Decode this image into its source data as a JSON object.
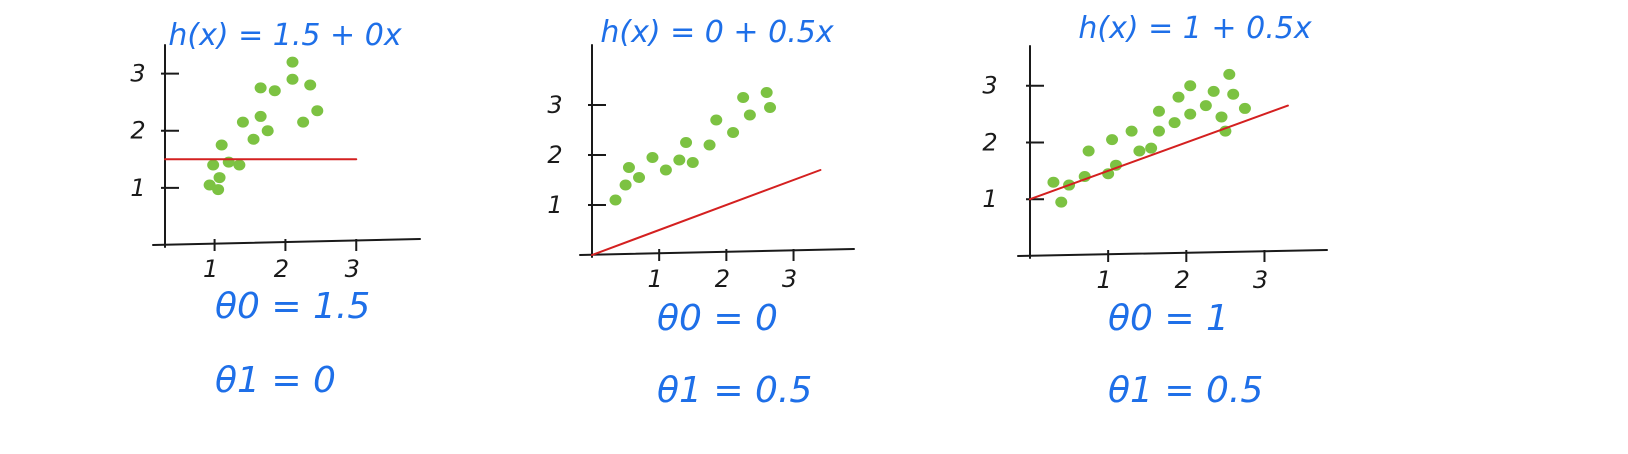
{
  "colors": {
    "ink": "#1a1a1a",
    "formula": "#1e6fe8",
    "points": "#7cc242",
    "line": "#d42020"
  },
  "chart_data": [
    {
      "type": "scatter",
      "title": "h(x) = 1.5 + 0x",
      "xticks": [
        "1",
        "2",
        "3"
      ],
      "yticks": [
        "1",
        "2",
        "3"
      ],
      "xlim": [
        0.3,
        3.9
      ],
      "ylim": [
        0,
        3.5
      ],
      "points": [
        [
          0.93,
          1.05
        ],
        [
          1.05,
          0.97
        ],
        [
          1.07,
          1.18
        ],
        [
          0.98,
          1.4
        ],
        [
          1.2,
          1.45
        ],
        [
          1.1,
          1.75
        ],
        [
          1.35,
          1.4
        ],
        [
          1.4,
          2.15
        ],
        [
          1.55,
          1.85
        ],
        [
          1.65,
          2.25
        ],
        [
          1.65,
          2.75
        ],
        [
          1.75,
          2.0
        ],
        [
          1.85,
          2.7
        ],
        [
          2.1,
          2.9
        ],
        [
          2.1,
          3.2
        ],
        [
          2.25,
          2.15
        ],
        [
          2.35,
          2.8
        ],
        [
          2.45,
          2.35
        ]
      ],
      "line": {
        "intercept": 1.5,
        "slope": 0,
        "x": [
          0.3,
          3.0
        ]
      },
      "annotations": [
        "θ0 = 1.5",
        "θ1 = 0"
      ]
    },
    {
      "type": "scatter",
      "title": "h(x) = 0 + 0.5x",
      "xticks": [
        "1",
        "2",
        "3"
      ],
      "yticks": [
        "1",
        "2",
        "3"
      ],
      "xlim": [
        0,
        3.9
      ],
      "ylim": [
        0,
        4.2
      ],
      "points": [
        [
          0.35,
          1.1
        ],
        [
          0.5,
          1.4
        ],
        [
          0.55,
          1.75
        ],
        [
          0.7,
          1.55
        ],
        [
          0.9,
          1.95
        ],
        [
          1.1,
          1.7
        ],
        [
          1.3,
          1.9
        ],
        [
          1.4,
          2.25
        ],
        [
          1.5,
          1.85
        ],
        [
          1.75,
          2.2
        ],
        [
          1.85,
          2.7
        ],
        [
          2.1,
          2.45
        ],
        [
          2.25,
          3.15
        ],
        [
          2.35,
          2.8
        ],
        [
          2.6,
          3.25
        ],
        [
          2.65,
          2.95
        ]
      ],
      "line": {
        "intercept": 0,
        "slope": 0.5,
        "x": [
          0,
          3.4
        ]
      },
      "annotations": [
        "θ0 = 0",
        "θ1 = 0.5"
      ]
    },
    {
      "type": "scatter",
      "title": "h(x) = 1 + 0.5x",
      "xticks": [
        "1",
        "2",
        "3"
      ],
      "yticks": [
        "1",
        "2",
        "3"
      ],
      "xlim": [
        0,
        3.8
      ],
      "ylim": [
        0,
        3.7
      ],
      "points": [
        [
          0.3,
          1.3
        ],
        [
          0.4,
          0.95
        ],
        [
          0.5,
          1.25
        ],
        [
          0.7,
          1.4
        ],
        [
          0.75,
          1.85
        ],
        [
          1.0,
          1.45
        ],
        [
          1.05,
          2.05
        ],
        [
          1.1,
          1.6
        ],
        [
          1.3,
          2.2
        ],
        [
          1.4,
          1.85
        ],
        [
          1.55,
          1.9
        ],
        [
          1.65,
          2.2
        ],
        [
          1.65,
          2.55
        ],
        [
          1.85,
          2.35
        ],
        [
          1.9,
          2.8
        ],
        [
          2.05,
          2.5
        ],
        [
          2.05,
          3.0
        ],
        [
          2.25,
          2.65
        ],
        [
          2.35,
          2.9
        ],
        [
          2.45,
          2.45
        ],
        [
          2.5,
          2.2
        ],
        [
          2.55,
          3.2
        ],
        [
          2.6,
          2.85
        ],
        [
          2.75,
          2.6
        ]
      ],
      "line": {
        "intercept": 1,
        "slope": 0.5,
        "x": [
          0,
          3.3
        ]
      },
      "annotations": [
        "θ0 = 1",
        "θ1 = 0.5"
      ]
    }
  ]
}
